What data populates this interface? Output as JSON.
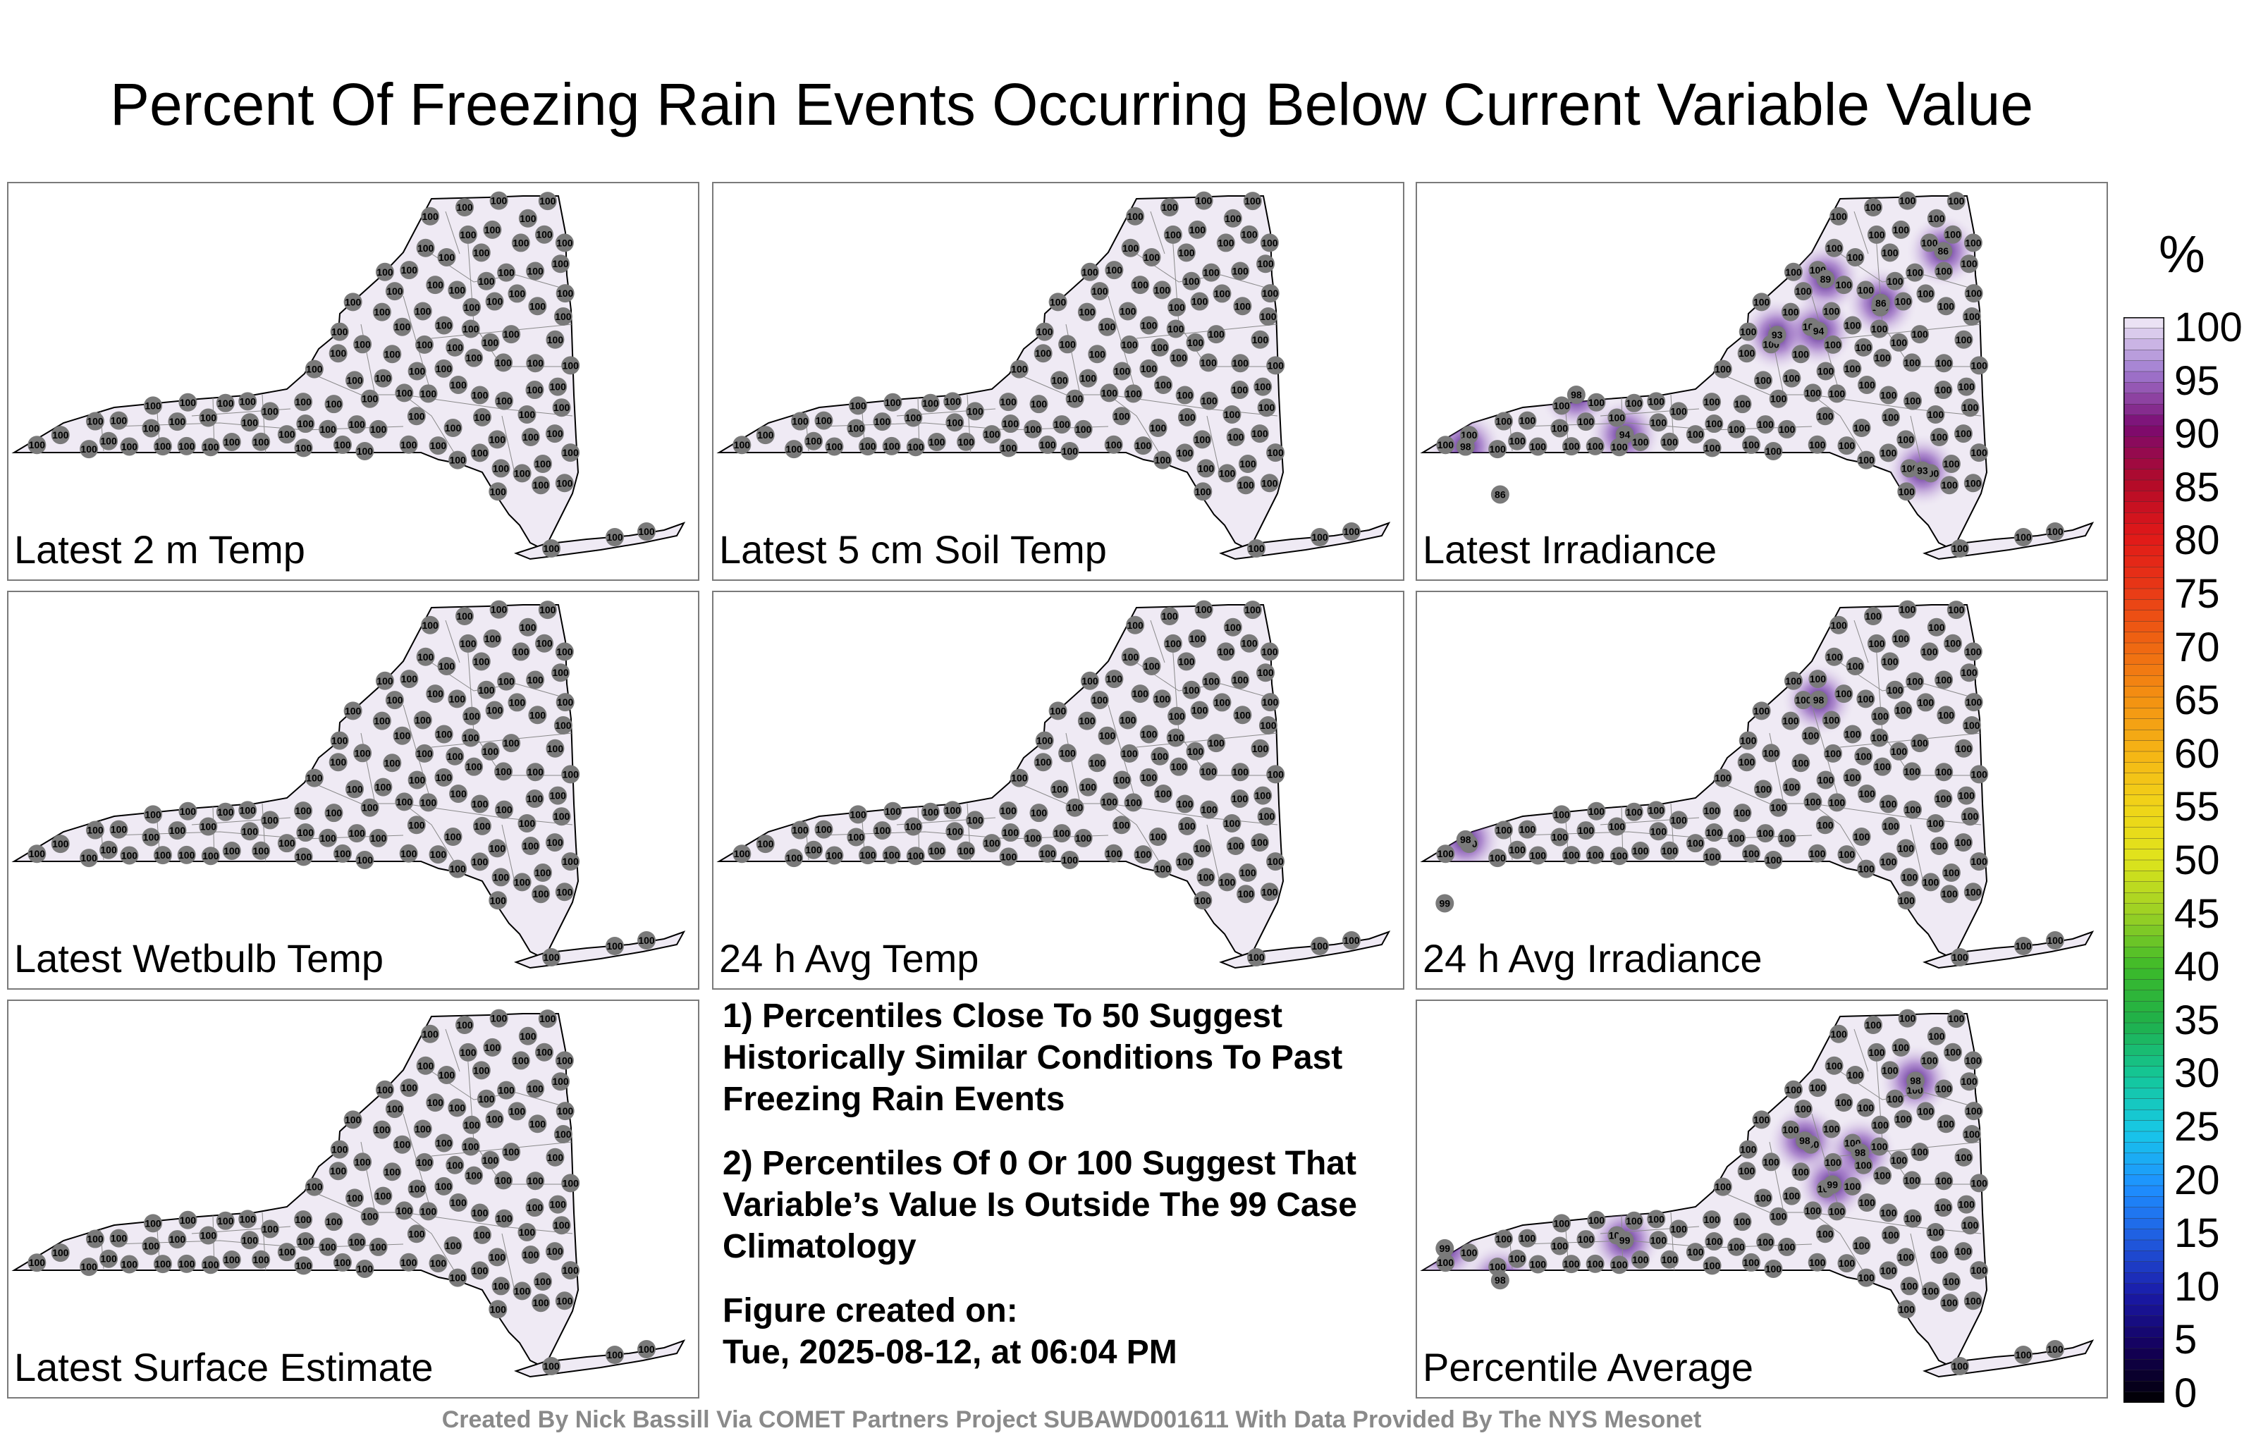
{
  "title": "Percent Of Freezing Rain Events Occurring Below Current Variable Value",
  "panels": [
    {
      "label": "Latest 2 m Temp",
      "highlights": []
    },
    {
      "label": "Latest 5 cm Soil Temp",
      "highlights": []
    },
    {
      "label": "Latest Irradiance",
      "highlights": [
        [
          "86",
          0.12,
          0.78
        ],
        [
          "98",
          0.07,
          0.66
        ],
        [
          "94",
          0.3,
          0.63
        ],
        [
          "98",
          0.23,
          0.53
        ],
        [
          "89",
          0.59,
          0.24
        ],
        [
          "93",
          0.52,
          0.38
        ],
        [
          "94",
          0.58,
          0.37
        ],
        [
          "86",
          0.67,
          0.3
        ],
        [
          "86",
          0.76,
          0.17
        ],
        [
          "93",
          0.73,
          0.72
        ]
      ]
    },
    {
      "label": "Latest Wetbulb Temp",
      "highlights": []
    },
    {
      "label": "24 h Avg Temp",
      "highlights": []
    },
    {
      "label": "24 h Avg Irradiance",
      "highlights": [
        [
          "98",
          0.07,
          0.62
        ],
        [
          "99",
          0.04,
          0.78
        ],
        [
          "98",
          0.58,
          0.27
        ]
      ]
    },
    {
      "label": "Latest Surface Estimate",
      "highlights": []
    },
    {
      "label": "Percentile Average",
      "highlights": [
        [
          "99",
          0.04,
          0.62
        ],
        [
          "98",
          0.12,
          0.7
        ],
        [
          "98",
          0.56,
          0.35
        ],
        [
          "98",
          0.64,
          0.38
        ],
        [
          "98",
          0.72,
          0.2
        ],
        [
          "99",
          0.6,
          0.46
        ],
        [
          "99",
          0.3,
          0.6
        ]
      ]
    }
  ],
  "notes": {
    "note1": "1) Percentiles Close To 50 Suggest Historically Similar Conditions To Past Freezing Rain Events",
    "note2": "2) Percentiles Of 0 Or 100 Suggest That Variable’s Value Is Outside The 99 Case Climatology",
    "created_label": "Figure created on:",
    "created_date": "Tue, 2025-08-12, at 06:04 PM"
  },
  "credit": "Created By Nick Bassill Via COMET Partners Project SUBAWD001611 With Data Provided By The NYS Mesonet",
  "colorbar": {
    "unit": "%",
    "ticks": [
      "100",
      "95",
      "90",
      "85",
      "80",
      "75",
      "70",
      "65",
      "60",
      "55",
      "50",
      "45",
      "40",
      "35",
      "30",
      "25",
      "20",
      "15",
      "10",
      "5",
      "0"
    ]
  },
  "station_default_value": "100",
  "colors": {
    "map_fill": "#efeaf4",
    "highlight": "#4b0a8c",
    "marker": "#7a7a7a"
  }
}
